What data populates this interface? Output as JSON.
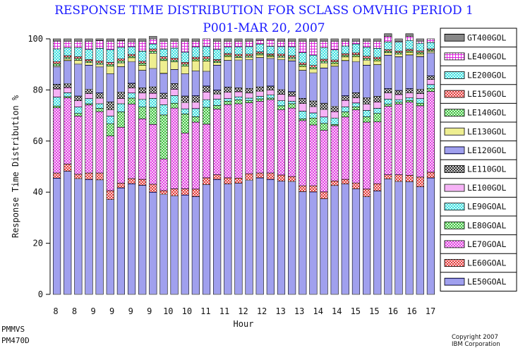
{
  "chart_data": {
    "type": "bar",
    "stacked": true,
    "title": "RESPONSE TIME DISTRIBUTION FOR SCLASS OMVHIG PERIOD 1",
    "subtitle": "P001-MAR 20, 2007",
    "xlabel": "Hour",
    "ylabel": "Response Time Distribution %",
    "ylim": [
      0,
      100
    ],
    "yticks": [
      "0",
      "20",
      "40",
      "60",
      "80",
      "100"
    ],
    "grid": false,
    "legend_position": "right",
    "categories": [
      "8",
      "8",
      "8",
      "9",
      "9",
      "9",
      "9",
      "10",
      "10",
      "10",
      "10",
      "11",
      "11",
      "11",
      "11",
      "12",
      "12",
      "12",
      "12",
      "13",
      "13",
      "13",
      "13",
      "14",
      "14",
      "14",
      "14",
      "15",
      "15",
      "15",
      "15",
      "16",
      "16",
      "16",
      "16",
      "17"
    ],
    "x_tick_labels": [
      "8",
      "8",
      "9",
      "9",
      "9",
      "9",
      "10",
      "10",
      "11",
      "11",
      "12",
      "12",
      "13",
      "13",
      "14",
      "14",
      "15",
      "15",
      "16",
      "16",
      "17"
    ],
    "series": [
      {
        "name": "LE50GOAL",
        "color": "#4040dd",
        "pattern": "h",
        "values": [
          45.5,
          48.2,
          45.3,
          45.0,
          44.8,
          37.1,
          41.7,
          43.3,
          42.7,
          40.0,
          39.2,
          38.6,
          38.9,
          38.3,
          43.0,
          45.0,
          43.2,
          43.5,
          44.7,
          45.6,
          45.0,
          44.3,
          44.2,
          40.2,
          40.1,
          37.4,
          42.6,
          43.2,
          41.3,
          38.2,
          40.5,
          45.2,
          44.2,
          44.1,
          42.1,
          45.6
        ]
      },
      {
        "name": "LE60GOAL",
        "color": "#e02020",
        "pattern": "x",
        "values": [
          2.0,
          2.8,
          1.7,
          2.5,
          2.7,
          3.5,
          1.8,
          2.0,
          2.3,
          3.1,
          1.4,
          2.7,
          2.4,
          2.9,
          2.6,
          1.8,
          2.4,
          2.0,
          2.5,
          1.9,
          2.5,
          2.4,
          1.9,
          2.3,
          2.4,
          2.7,
          1.8,
          1.8,
          2.3,
          3.0,
          2.8,
          1.6,
          2.6,
          2.5,
          3.8,
          2.2
        ]
      },
      {
        "name": "LE70GOAL",
        "color": "#dd22dd",
        "pattern": "x",
        "values": [
          25.5,
          25.9,
          22.8,
          26.6,
          24.0,
          21.4,
          21.9,
          29.2,
          23.7,
          23.4,
          12.4,
          31.6,
          21.8,
          26.2,
          21.0,
          25.7,
          28.7,
          29.1,
          27.8,
          28.1,
          28.7,
          25.6,
          26.8,
          25.5,
          23.8,
          24.1,
          21.6,
          24.4,
          28.6,
          26.2,
          24.2,
          26.8,
          27.7,
          28.6,
          27.9,
          31.6
        ]
      },
      {
        "name": "LE80GOAL",
        "color": "#22bb22",
        "pattern": "x",
        "values": [
          0.7,
          0.5,
          1.0,
          0.5,
          1.3,
          4.8,
          6.0,
          2.3,
          4.6,
          6.7,
          17.2,
          1.9,
          7.5,
          2.1,
          6.6,
          1.4,
          1.3,
          1.5,
          0.8,
          0.9,
          0.6,
          1.5,
          1.7,
          0.7,
          2.7,
          2.7,
          0.5,
          2.0,
          1.2,
          2.1,
          3.3,
          0.8,
          0.7,
          0.7,
          1.0,
          1.2
        ]
      },
      {
        "name": "LE90GOAL",
        "color": "#22dddd",
        "pattern": "x",
        "values": [
          3.5,
          1.5,
          2.5,
          2.0,
          1.8,
          3.0,
          3.2,
          2.0,
          3.0,
          3.5,
          4.0,
          3.0,
          2.0,
          3.2,
          3.0,
          2.5,
          1.0,
          1.2,
          1.0,
          1.0,
          1.2,
          2.0,
          1.0,
          3.0,
          2.0,
          2.5,
          2.5,
          2.0,
          1.5,
          2.5,
          2.0,
          2.0,
          1.0,
          1.0,
          1.8,
          1.5
        ]
      },
      {
        "name": "LE100GOL",
        "color": "#ee66ee",
        "pattern": "h",
        "values": [
          3.2,
          2.0,
          2.5,
          2.0,
          2.2,
          2.5,
          2.0,
          2.0,
          2.5,
          2.0,
          2.5,
          2.5,
          2.5,
          2.5,
          3.0,
          2.0,
          2.5,
          2.0,
          2.0,
          2.0,
          2.0,
          2.5,
          2.0,
          3.0,
          2.5,
          3.0,
          2.5,
          2.5,
          2.0,
          2.5,
          2.5,
          2.5,
          2.0,
          2.0,
          2.0,
          2.0
        ]
      },
      {
        "name": "LE110GOL",
        "color": "#111111",
        "pattern": "x",
        "values": [
          1.8,
          1.5,
          1.8,
          1.6,
          2.0,
          3.0,
          2.5,
          1.8,
          2.0,
          2.5,
          2.0,
          2.2,
          2.5,
          2.5,
          2.3,
          1.5,
          2.0,
          1.5,
          1.8,
          1.7,
          1.5,
          1.8,
          1.7,
          2.0,
          2.2,
          2.4,
          2.0,
          1.8,
          2.0,
          2.4,
          2.2,
          1.6,
          1.6,
          1.6,
          1.6,
          1.4
        ]
      },
      {
        "name": "LE120GOL",
        "color": "#4040dd",
        "pattern": "h",
        "values": [
          6.8,
          9.1,
          12.5,
          9.5,
          10.2,
          11.0,
          10.0,
          8.5,
          6.9,
          7.2,
          7.8,
          5.5,
          8.7,
          9.7,
          5.8,
          9.8,
          10.5,
          10.9,
          11.2,
          11.5,
          10.8,
          11.7,
          12.1,
          11.0,
          11.0,
          13.8,
          15.8,
          13.8,
          12.2,
          12.8,
          12.4,
          13.1,
          13.2,
          13.2,
          12.9,
          9.0
        ]
      },
      {
        "name": "LE130GOL",
        "color": "#dddd22",
        "pattern": "h",
        "values": [
          0.5,
          0.7,
          1.5,
          1.0,
          1.0,
          3.0,
          1.5,
          1.5,
          2.0,
          6.0,
          5.0,
          3.0,
          3.0,
          4.0,
          4.0,
          1.0,
          1.5,
          1.0,
          1.0,
          1.0,
          0.8,
          1.0,
          0.8,
          1.5,
          1.5,
          2.0,
          1.0,
          1.5,
          2.0,
          2.0,
          1.5,
          1.0,
          1.0,
          1.0,
          1.0,
          0.6
        ]
      },
      {
        "name": "LE140GOL",
        "color": "#22bb22",
        "pattern": "x",
        "values": [
          0.8,
          0.6,
          0.7,
          0.6,
          0.6,
          0.7,
          0.8,
          0.7,
          0.8,
          0.8,
          0.7,
          0.7,
          0.8,
          0.7,
          0.9,
          0.6,
          0.6,
          0.6,
          0.6,
          0.6,
          0.5,
          0.6,
          0.6,
          0.7,
          0.7,
          0.7,
          0.7,
          0.6,
          0.7,
          0.7,
          0.7,
          0.6,
          0.6,
          0.6,
          0.6,
          0.5
        ]
      },
      {
        "name": "LE150GOL",
        "color": "#e02020",
        "pattern": "x",
        "values": [
          0.8,
          0.6,
          0.7,
          0.6,
          0.7,
          0.8,
          0.8,
          0.6,
          0.7,
          0.8,
          0.8,
          0.7,
          0.7,
          0.7,
          0.8,
          0.6,
          0.6,
          0.6,
          0.6,
          0.6,
          0.5,
          0.6,
          0.6,
          0.7,
          0.7,
          0.7,
          0.7,
          0.6,
          0.7,
          0.8,
          0.7,
          0.6,
          0.6,
          0.6,
          0.6,
          0.5
        ]
      },
      {
        "name": "LE200GOL",
        "color": "#22dddd",
        "pattern": "x",
        "values": [
          5.0,
          3.1,
          3.5,
          4.0,
          5.0,
          5.0,
          4.5,
          3.0,
          4.0,
          2.0,
          3.0,
          4.0,
          4.0,
          4.0,
          4.0,
          4.0,
          2.5,
          3.0,
          3.0,
          3.0,
          3.0,
          3.0,
          3.5,
          4.0,
          4.0,
          4.5,
          4.0,
          3.0,
          3.5,
          3.5,
          3.5,
          3.0,
          3.5,
          3.5,
          3.0,
          2.5
        ]
      },
      {
        "name": "LE400GOL",
        "color": "#dd22dd",
        "pattern": "g",
        "values": [
          3.0,
          2.5,
          2.5,
          3.1,
          3.0,
          3.2,
          2.5,
          2.0,
          3.8,
          2.0,
          3.0,
          2.6,
          4.2,
          2.2,
          3.0,
          3.1,
          2.2,
          2.1,
          2.0,
          1.5,
          2.4,
          2.0,
          2.1,
          4.4,
          5.4,
          2.5,
          3.3,
          1.8,
          1.0,
          2.3,
          2.7,
          2.2,
          0.3,
          1.6,
          0.7,
          1.4
        ]
      },
      {
        "name": "GT400GOL",
        "color": "#111111",
        "pattern": "h",
        "values": [
          0.9,
          1.0,
          1.0,
          1.0,
          0.7,
          1.0,
          0.8,
          1.1,
          1.0,
          1.0,
          1.0,
          1.0,
          1.0,
          1.0,
          0.0,
          1.0,
          1.0,
          1.0,
          1.0,
          0.6,
          0.5,
          1.0,
          1.0,
          1.0,
          1.0,
          1.0,
          1.0,
          1.0,
          1.0,
          1.0,
          1.0,
          1.0,
          1.0,
          1.0,
          1.0,
          0.0
        ]
      }
    ]
  },
  "footer": {
    "left_line1": "PMMVS",
    "left_line2": "PM470D",
    "copyright_line1": "Copyright 2007",
    "copyright_line2": "IBM Corporation"
  }
}
